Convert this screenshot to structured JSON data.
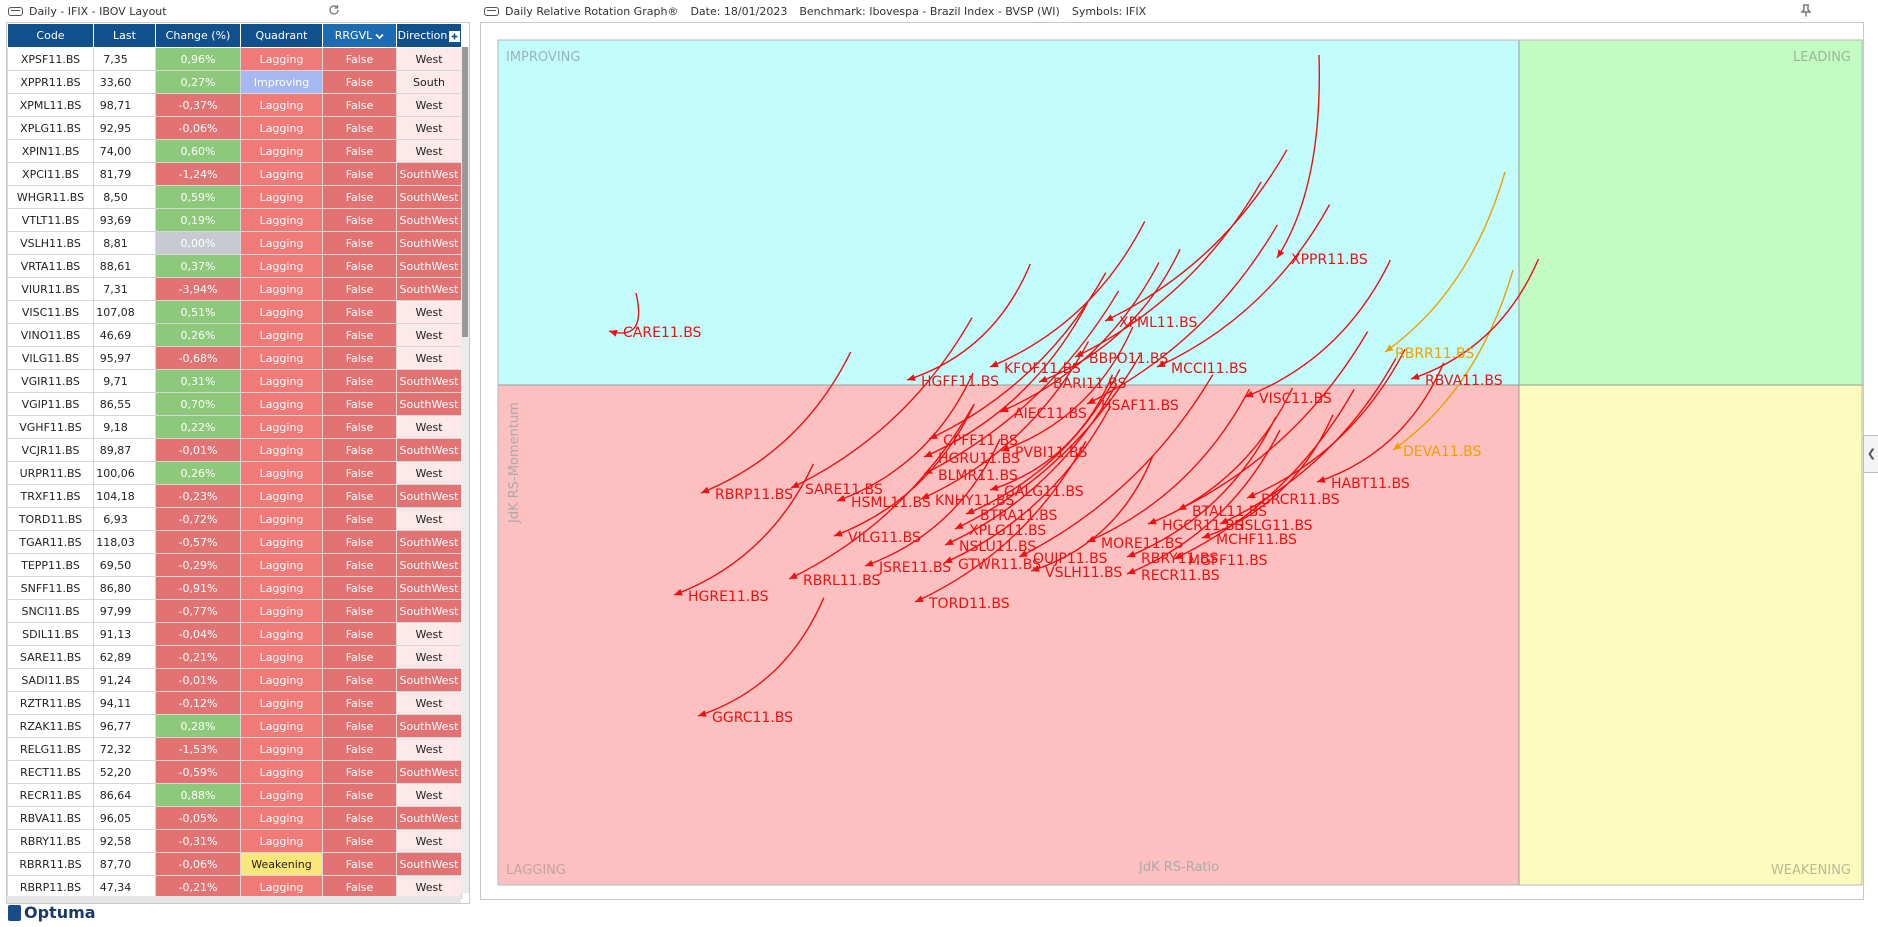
{
  "left_title": "Daily - IFIX - IBOV Layout",
  "right_title": {
    "name": "Daily Relative Rotation Graph®",
    "date": "Date: 18/01/2023",
    "benchmark": "Benchmark: Ibovespa - Brazil Index - BVSP (WI)",
    "symbols": "Symbols: IFIX"
  },
  "logo": "Optuma",
  "columns": [
    "Code",
    "Last",
    "Change (%)",
    "Quadrant",
    "RRGVL",
    "Direction"
  ],
  "rows": [
    [
      "XPSF11.BS",
      "7,35",
      "0,96%",
      "Lagging",
      "False",
      "West"
    ],
    [
      "XPPR11.BS",
      "33,60",
      "0,27%",
      "Improving",
      "False",
      "South"
    ],
    [
      "XPML11.BS",
      "98,71",
      "-0,37%",
      "Lagging",
      "False",
      "West"
    ],
    [
      "XPLG11.BS",
      "92,95",
      "-0,06%",
      "Lagging",
      "False",
      "West"
    ],
    [
      "XPIN11.BS",
      "74,00",
      "0,60%",
      "Lagging",
      "False",
      "West"
    ],
    [
      "XPCI11.BS",
      "81,79",
      "-1,24%",
      "Lagging",
      "False",
      "SouthWest"
    ],
    [
      "WHGR11.BS",
      "8,50",
      "0,59%",
      "Lagging",
      "False",
      "SouthWest"
    ],
    [
      "VTLT11.BS",
      "93,69",
      "0,19%",
      "Lagging",
      "False",
      "SouthWest"
    ],
    [
      "VSLH11.BS",
      "8,81",
      "0,00%",
      "Lagging",
      "False",
      "SouthWest"
    ],
    [
      "VRTA11.BS",
      "88,61",
      "0,37%",
      "Lagging",
      "False",
      "SouthWest"
    ],
    [
      "VIUR11.BS",
      "7,31",
      "-3,94%",
      "Lagging",
      "False",
      "SouthWest"
    ],
    [
      "VISC11.BS",
      "107,08",
      "0,51%",
      "Lagging",
      "False",
      "West"
    ],
    [
      "VINO11.BS",
      "46,69",
      "0,26%",
      "Lagging",
      "False",
      "West"
    ],
    [
      "VILG11.BS",
      "95,97",
      "-0,68%",
      "Lagging",
      "False",
      "West"
    ],
    [
      "VGIR11.BS",
      "9,71",
      "0,31%",
      "Lagging",
      "False",
      "SouthWest"
    ],
    [
      "VGIP11.BS",
      "86,55",
      "0,70%",
      "Lagging",
      "False",
      "SouthWest"
    ],
    [
      "VGHF11.BS",
      "9,18",
      "0,22%",
      "Lagging",
      "False",
      "West"
    ],
    [
      "VCJR11.BS",
      "89,87",
      "-0,01%",
      "Lagging",
      "False",
      "SouthWest"
    ],
    [
      "URPR11.BS",
      "100,06",
      "0,26%",
      "Lagging",
      "False",
      "West"
    ],
    [
      "TRXF11.BS",
      "104,18",
      "-0,23%",
      "Lagging",
      "False",
      "SouthWest"
    ],
    [
      "TORD11.BS",
      "6,93",
      "-0,72%",
      "Lagging",
      "False",
      "West"
    ],
    [
      "TGAR11.BS",
      "118,03",
      "-0,57%",
      "Lagging",
      "False",
      "SouthWest"
    ],
    [
      "TEPP11.BS",
      "69,50",
      "-0,29%",
      "Lagging",
      "False",
      "SouthWest"
    ],
    [
      "SNFF11.BS",
      "86,80",
      "-0,91%",
      "Lagging",
      "False",
      "SouthWest"
    ],
    [
      "SNCI11.BS",
      "97,99",
      "-0,77%",
      "Lagging",
      "False",
      "SouthWest"
    ],
    [
      "SDIL11.BS",
      "91,13",
      "-0,04%",
      "Lagging",
      "False",
      "West"
    ],
    [
      "SARE11.BS",
      "62,89",
      "-0,21%",
      "Lagging",
      "False",
      "West"
    ],
    [
      "SADI11.BS",
      "91,24",
      "-0,01%",
      "Lagging",
      "False",
      "SouthWest"
    ],
    [
      "RZTR11.BS",
      "94,11",
      "-0,12%",
      "Lagging",
      "False",
      "West"
    ],
    [
      "RZAK11.BS",
      "96,77",
      "0,28%",
      "Lagging",
      "False",
      "SouthWest"
    ],
    [
      "RELG11.BS",
      "72,32",
      "-1,53%",
      "Lagging",
      "False",
      "West"
    ],
    [
      "RECT11.BS",
      "52,20",
      "-0,59%",
      "Lagging",
      "False",
      "SouthWest"
    ],
    [
      "RECR11.BS",
      "86,64",
      "0,88%",
      "Lagging",
      "False",
      "West"
    ],
    [
      "RBVA11.BS",
      "96,05",
      "-0,05%",
      "Lagging",
      "False",
      "SouthWest"
    ],
    [
      "RBRY11.BS",
      "92,58",
      "-0,31%",
      "Lagging",
      "False",
      "West"
    ],
    [
      "RBRR11.BS",
      "87,70",
      "-0,06%",
      "Weakening",
      "False",
      "SouthWest"
    ],
    [
      "RBRP11.BS",
      "47,34",
      "-0,21%",
      "Lagging",
      "False",
      "West"
    ]
  ],
  "rrg": {
    "quadrants": {
      "improving": "IMPROVING",
      "leading": "LEADING",
      "lagging": "LAGGING",
      "weakening": "WEAKENING"
    },
    "axis_x": "JdK RS-Ratio",
    "axis_y": "JdK RS-Momentum",
    "colors": {
      "improving": "#c2fcfc",
      "leading": "#c2fcc2",
      "lagging": "#fcc0c0",
      "weakening": "#fcfcc0",
      "tail": "#f01010",
      "tail_weak": "#f0a000"
    },
    "labels": [
      {
        "text": "XPPR11.BS",
        "color": "#f01010"
      },
      {
        "text": "CARE11.BS",
        "color": "#f01010"
      },
      {
        "text": "XPML11.BS",
        "color": "#f01010"
      },
      {
        "text": "RBRR11.BS",
        "color": "#f0a000"
      },
      {
        "text": "DEVA11.BS",
        "color": "#f0a000"
      },
      {
        "text": "HGFF11.BS",
        "color": "#f01010"
      },
      {
        "text": "KFOF11.BS",
        "color": "#f01010"
      },
      {
        "text": "BBPO11.BS",
        "color": "#f01010"
      },
      {
        "text": "BARI11.BS",
        "color": "#f01010"
      },
      {
        "text": "MCCI11.BS",
        "color": "#f01010"
      },
      {
        "text": "RBVA11.BS",
        "color": "#f01010"
      },
      {
        "text": "AIEC11.BS",
        "color": "#f01010"
      },
      {
        "text": "HSAF11.BS",
        "color": "#f01010"
      },
      {
        "text": "VISC11.BS",
        "color": "#f01010"
      },
      {
        "text": "CPFF11.BS",
        "color": "#f01010"
      },
      {
        "text": "PVBI11.BS",
        "color": "#f01010"
      },
      {
        "text": "HGRU11.BS",
        "color": "#f01010"
      },
      {
        "text": "BLMR11.BS",
        "color": "#f01010"
      },
      {
        "text": "RBRP11.BS",
        "color": "#f01010"
      },
      {
        "text": "SARE11.BS",
        "color": "#f01010"
      },
      {
        "text": "HSML11.BS",
        "color": "#f01010"
      },
      {
        "text": "KNHY11.BS",
        "color": "#f01010"
      },
      {
        "text": "GALG11.BS",
        "color": "#f01010"
      },
      {
        "text": "BTRA11.BS",
        "color": "#f01010"
      },
      {
        "text": "XPLG11.BS",
        "color": "#f01010"
      },
      {
        "text": "VILG11.BS",
        "color": "#f01010"
      },
      {
        "text": "NSLU11.BS",
        "color": "#f01010"
      },
      {
        "text": "HABT11.BS",
        "color": "#f01010"
      },
      {
        "text": "BRCR11.BS",
        "color": "#f01010"
      },
      {
        "text": "BTAL11.BS",
        "color": "#f01010"
      },
      {
        "text": "HGCR11.BS",
        "color": "#f01010"
      },
      {
        "text": "HSLG11.BS",
        "color": "#f01010"
      },
      {
        "text": "MCHF11.BS",
        "color": "#f01010"
      },
      {
        "text": "MORE11.BS",
        "color": "#f01010"
      },
      {
        "text": "OUJP11.BS",
        "color": "#f01010"
      },
      {
        "text": "RBRY11.BS",
        "color": "#f01010"
      },
      {
        "text": "MGFF11.BS",
        "color": "#f01010"
      },
      {
        "text": "JSRE11.BS",
        "color": "#f01010"
      },
      {
        "text": "GTWR11.BS",
        "color": "#f01010"
      },
      {
        "text": "VSLH11.BS",
        "color": "#f01010"
      },
      {
        "text": "RECR11.BS",
        "color": "#f01010"
      },
      {
        "text": "RBRL11.BS",
        "color": "#f01010"
      },
      {
        "text": "HGRE11.BS",
        "color": "#f01010"
      },
      {
        "text": "TORD11.BS",
        "color": "#f01010"
      },
      {
        "text": "GGRC11.BS",
        "color": "#f01010"
      }
    ]
  }
}
